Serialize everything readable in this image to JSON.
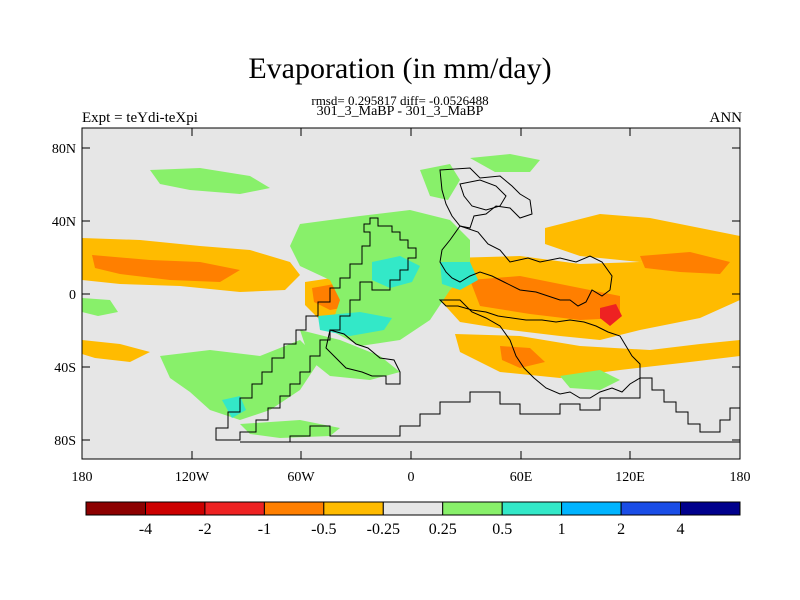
{
  "title": "Evaporation (in mm/day)",
  "stats_line": "rmsd= 0.295817 diff= -0.0526488",
  "case_line": "301_3_MaBP - 301_3_MaBP",
  "experiment_label": "Expt = teYdi-teXpi",
  "season_label": "ANN",
  "axes": {
    "lon_ticks": [
      "180",
      "120W",
      "60W",
      "0",
      "60E",
      "120E",
      "180"
    ],
    "lat_ticks": [
      "80N",
      "40N",
      "0",
      "40S",
      "80S"
    ]
  },
  "colorbar": {
    "colors": [
      "#8c0000",
      "#cc0000",
      "#ee2222",
      "#ff7f00",
      "#ffbb00",
      "#e6e6e6",
      "#88f06a",
      "#33e8c8",
      "#00b4ff",
      "#1a4de6",
      "#00008c"
    ],
    "labels": [
      "-4",
      "-2",
      "-1",
      "-0.5",
      "-0.25",
      "0.25",
      "0.5",
      "1",
      "2",
      "4"
    ]
  },
  "palette": {
    "neutral": "#e6e6e6",
    "light_neg": "#ffbb00",
    "neg": "#ff7f00",
    "strong_neg": "#ee2222",
    "light_pos": "#88f06a",
    "pos": "#33e8c8"
  }
}
